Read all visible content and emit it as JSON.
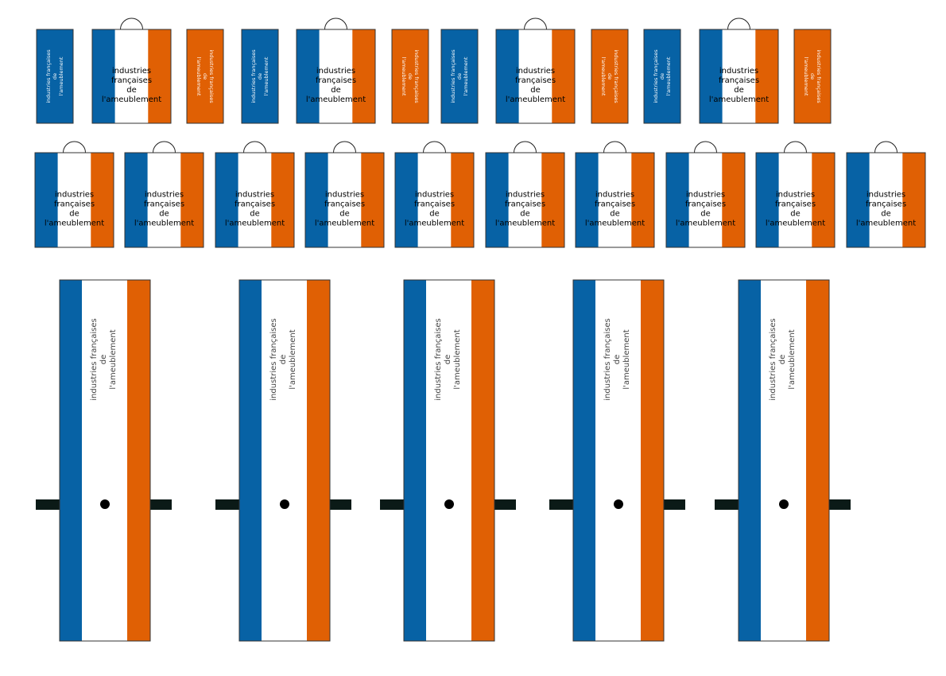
{
  "row1": [
    {
      "lines": [
        "industries françaises",
        "de",
        "l'ameublement"
      ]
    },
    {
      "lines": [
        "industries",
        "françaises",
        "de",
        "l'ameublement"
      ]
    },
    {
      "lines": [
        "industries françaises",
        "de",
        "l'ameublement"
      ]
    },
    {
      "lines": [
        "industries françaises",
        "de",
        "l'ameublement"
      ]
    },
    {
      "lines": [
        "industries",
        "françaises",
        "de",
        "l'ameublement"
      ]
    },
    {
      "lines": [
        "industries françaises",
        "de",
        "l'ameublement"
      ]
    },
    {
      "lines": [
        "industries françaises",
        "de",
        "l'ameublement"
      ]
    },
    {
      "lines": [
        "industries",
        "françaises",
        "de",
        "l'ameublement"
      ]
    },
    {
      "lines": [
        "industries françaises",
        "de",
        "l'ameublement"
      ]
    },
    {
      "lines": [
        "industries françaises",
        "de",
        "l'ameublement"
      ]
    },
    {
      "lines": [
        "industries",
        "françaises",
        "de",
        "l'ameublement"
      ]
    },
    {
      "lines": [
        "industries françaises",
        "de",
        "l'ameublement"
      ]
    }
  ],
  "row2": [
    {
      "lines": [
        "industries",
        "françaises",
        "de",
        "l'ameublement"
      ]
    },
    {
      "lines": [
        "industries",
        "françaises",
        "de",
        "l'ameublement"
      ]
    },
    {
      "lines": [
        "industries",
        "françaises",
        "de",
        "l'ameublement"
      ]
    },
    {
      "lines": [
        "industries",
        "françaises",
        "de",
        "l'ameublement"
      ]
    },
    {
      "lines": [
        "industries",
        "françaises",
        "de",
        "l'ameublement"
      ]
    },
    {
      "lines": [
        "industries",
        "françaises",
        "de",
        "l'ameublement"
      ]
    },
    {
      "lines": [
        "industries",
        "françaises",
        "de",
        "l'ameublement"
      ]
    },
    {
      "lines": [
        "industries",
        "françaises",
        "de",
        "l'ameublement"
      ]
    },
    {
      "lines": [
        "industries",
        "françaises",
        "de",
        "l'ameublement"
      ]
    },
    {
      "lines": [
        "industries",
        "françaises",
        "de",
        "l'ameublement"
      ]
    }
  ],
  "row3": [
    {
      "lines": [
        "industries françaises",
        "de",
        "l'ameublement"
      ]
    },
    {
      "lines": [
        "industries françaises",
        "de",
        "l'ameublement"
      ]
    },
    {
      "lines": [
        "industries françaises",
        "de",
        "l'ameublement"
      ]
    },
    {
      "lines": [
        "industries françaises",
        "de",
        "l'ameublement"
      ]
    },
    {
      "lines": [
        "industries françaises",
        "de",
        "l'ameublement"
      ]
    }
  ]
}
